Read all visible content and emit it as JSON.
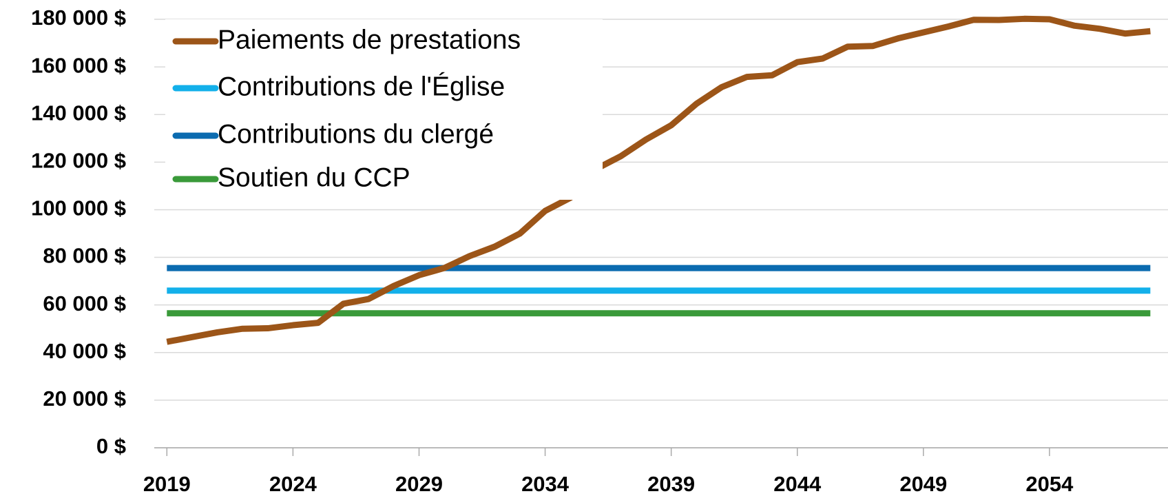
{
  "chart_data": {
    "type": "line",
    "x": [
      2019,
      2020,
      2021,
      2022,
      2023,
      2024,
      2025,
      2026,
      2027,
      2028,
      2029,
      2030,
      2031,
      2032,
      2033,
      2034,
      2035,
      2036,
      2037,
      2038,
      2039,
      2040,
      2041,
      2042,
      2043,
      2044,
      2045,
      2046,
      2047,
      2048,
      2049,
      2050,
      2051,
      2052,
      2053,
      2054,
      2055,
      2056,
      2057,
      2058
    ],
    "series": [
      {
        "name": "Paiements de prestations",
        "color": "#9c5518",
        "values": [
          44500,
          46500,
          48500,
          50000,
          50200,
          51500,
          52500,
          60500,
          62500,
          68000,
          72500,
          75500,
          80500,
          84500,
          90000,
          99500,
          105000,
          117000,
          122500,
          129500,
          135500,
          144500,
          151500,
          155800,
          156500,
          162000,
          163500,
          168500,
          168800,
          172000,
          174500,
          177000,
          179800,
          179700,
          180200,
          180000,
          177300,
          176000,
          174000,
          175000
        ]
      },
      {
        "name": "Contributions de l'Église",
        "color": "#13b0ea",
        "values": [
          66000,
          66000,
          66000,
          66000,
          66000,
          66000,
          66000,
          66000,
          66000,
          66000,
          66000,
          66000,
          66000,
          66000,
          66000,
          66000,
          66000,
          66000,
          66000,
          66000,
          66000,
          66000,
          66000,
          66000,
          66000,
          66000,
          66000,
          66000,
          66000,
          66000,
          66000,
          66000,
          66000,
          66000,
          66000,
          66000,
          66000,
          66000,
          66000,
          66000
        ]
      },
      {
        "name": "Contributions du clergé",
        "color": "#0b6bb0",
        "values": [
          75500,
          75500,
          75500,
          75500,
          75500,
          75500,
          75500,
          75500,
          75500,
          75500,
          75500,
          75500,
          75500,
          75500,
          75500,
          75500,
          75500,
          75500,
          75500,
          75500,
          75500,
          75500,
          75500,
          75500,
          75500,
          75500,
          75500,
          75500,
          75500,
          75500,
          75500,
          75500,
          75500,
          75500,
          75500,
          75500,
          75500,
          75500,
          75500,
          75500
        ]
      },
      {
        "name": "Soutien du CCP",
        "color": "#3a9a3a",
        "values": [
          56500,
          56500,
          56500,
          56500,
          56500,
          56500,
          56500,
          56500,
          56500,
          56500,
          56500,
          56500,
          56500,
          56500,
          56500,
          56500,
          56500,
          56500,
          56500,
          56500,
          56500,
          56500,
          56500,
          56500,
          56500,
          56500,
          56500,
          56500,
          56500,
          56500,
          56500,
          56500,
          56500,
          56500,
          56500,
          56500,
          56500,
          56500,
          56500,
          56500
        ]
      }
    ],
    "xlim": [
      2018.5,
      2058.7
    ],
    "xticks": [
      2019,
      2024,
      2029,
      2034,
      2039,
      2044,
      2049,
      2054
    ],
    "ylim": [
      0,
      180000
    ],
    "yticks": [
      {
        "value": 0,
        "label": "0 $"
      },
      {
        "value": 20000,
        "label": "20 000 $"
      },
      {
        "value": 40000,
        "label": "40 000 $"
      },
      {
        "value": 60000,
        "label": "60 000 $"
      },
      {
        "value": 80000,
        "label": "80 000 $"
      },
      {
        "value": 100000,
        "label": "100 000 $"
      },
      {
        "value": 120000,
        "label": "120 000 $"
      },
      {
        "value": 140000,
        "label": "140 000 $"
      },
      {
        "value": 160000,
        "label": "160 000 $"
      },
      {
        "value": 180000,
        "label": "180 000 $"
      }
    ],
    "grid": true,
    "legend": "upper left"
  }
}
